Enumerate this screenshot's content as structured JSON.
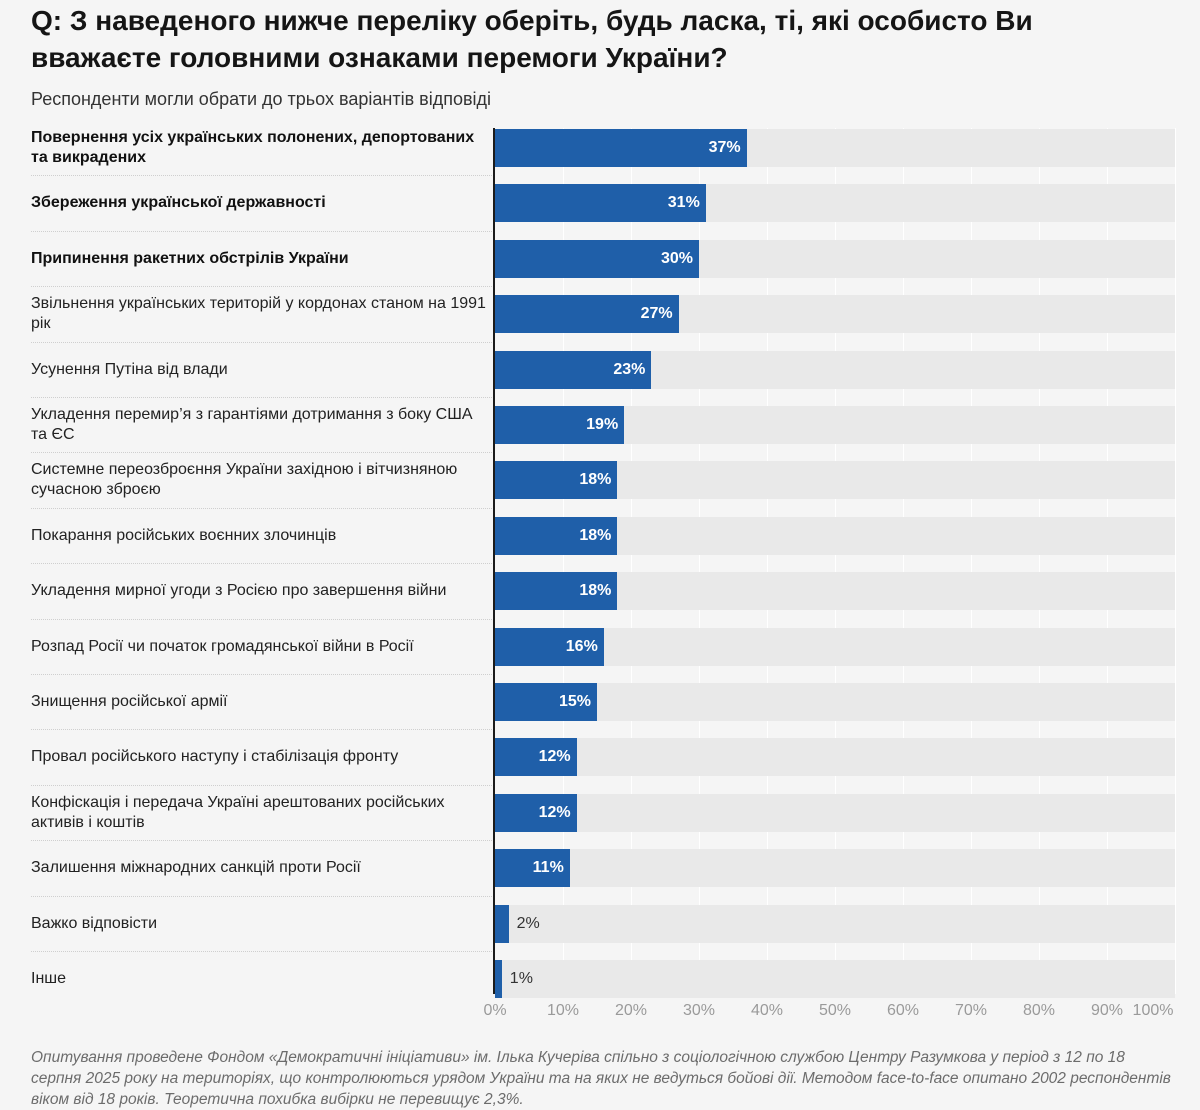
{
  "title": "Q: З наведеного нижче переліку оберіть, будь ласка, ті, які особисто Ви вважаєте головними ознаками перемоги України?",
  "subtitle": "Респонденти могли обрати до трьох варіантів відповіді",
  "chart_data": {
    "type": "bar",
    "orientation": "horizontal",
    "title": "Q: З наведеного нижче переліку оберіть, будь ласка, ті, які особисто Ви вважаєте головними ознаками перемоги України?",
    "subtitle": "Респонденти могли обрати до трьох варіантів відповіді",
    "xlim": [
      0,
      100
    ],
    "unit": "%",
    "x_ticks": [
      "0%",
      "10%",
      "20%",
      "30%",
      "40%",
      "50%",
      "60%",
      "70%",
      "80%",
      "90%",
      "100%"
    ],
    "categories": [
      "Повернення усіх українських полонених, депортованих та викрадених",
      "Збереження української державності",
      "Припинення ракетних обстрілів України",
      "Звільнення українських територій у кордонах станом на 1991 рік",
      "Усунення Путіна від влади",
      "Укладення перемир’я з гарантіями дотримання з боку США та ЄС",
      "Системне переозброєння України західною і вітчизняною сучасною зброєю",
      "Покарання російських воєнних злочинців",
      "Укладення мирної угоди з Росією про завершення війни",
      "Розпад Росії чи початок громадянської війни в Росії",
      "Знищення російської армії",
      "Провал російського наступу і стабілізація фронту",
      "Конфіскація і передача Україні арештованих російських активів і коштів",
      "Залишення міжнародних санкцій проти Росії",
      "Важко відповісти",
      "Інше"
    ],
    "values": [
      37,
      31,
      30,
      27,
      23,
      19,
      18,
      18,
      18,
      16,
      15,
      12,
      12,
      11,
      2,
      1
    ],
    "value_labels": [
      "37%",
      "31%",
      "30%",
      "27%",
      "23%",
      "19%",
      "18%",
      "18%",
      "18%",
      "16%",
      "15%",
      "12%",
      "12%",
      "11%",
      "2%",
      "1%"
    ],
    "bold_categories": [
      0,
      1,
      2
    ],
    "bar_color": "#1f5fa9",
    "track_color": "#e9e9e9"
  },
  "footnote": "Опитування проведене Фондом «Демократичні ініціативи» ім. Ілька Кучеріва спільно з соціологічною службою Центру Разумкова у період з 12 по 18 серпня 2025 року на територіях, що контролюються урядом України та на яких не ведуться бойові дії. Методом face-to-face опитано 2002 респондентів віком від 18 років. Теоретична похибка вибірки не перевищує 2,3%."
}
